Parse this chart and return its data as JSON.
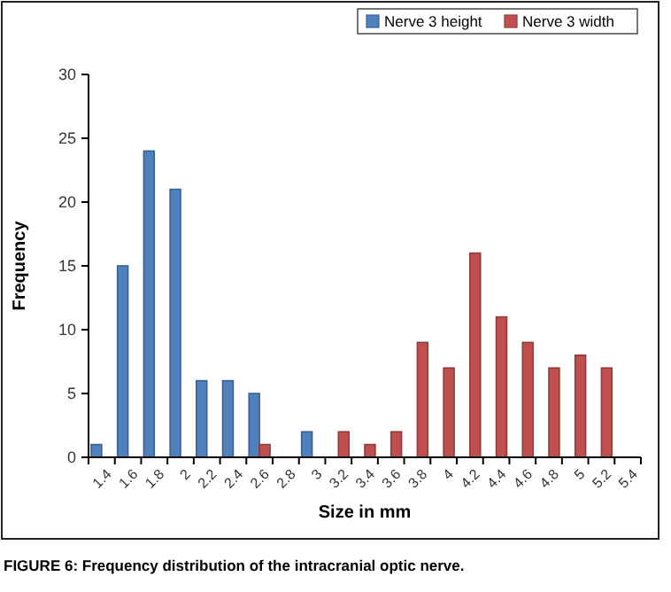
{
  "chart_data": {
    "type": "bar",
    "xlabel": "Size in mm",
    "ylabel": "Frequency",
    "categories": [
      "1.4",
      "1.6",
      "1.8",
      "2",
      "2.2",
      "2.4",
      "2.6",
      "2.8",
      "3",
      "3.2",
      "3.4",
      "3.6",
      "3.8",
      "4",
      "4.2",
      "4.4",
      "4.6",
      "4.8",
      "5",
      "5.2",
      "5.4"
    ],
    "series": [
      {
        "name": "Nerve 3 height",
        "color": "#4f81bd",
        "values": [
          1,
          15,
          24,
          21,
          6,
          6,
          5,
          null,
          2,
          null,
          null,
          null,
          null,
          null,
          null,
          null,
          null,
          null,
          null,
          null,
          null
        ]
      },
      {
        "name": "Nerve 3 width",
        "color": "#c0504d",
        "values": [
          null,
          null,
          null,
          null,
          null,
          null,
          1,
          null,
          null,
          2,
          1,
          2,
          9,
          7,
          16,
          11,
          9,
          7,
          8,
          7,
          null
        ]
      }
    ],
    "ylim": [
      0,
      30
    ],
    "yticks": [
      0,
      5,
      10,
      15,
      20,
      25,
      30
    ],
    "grid": false,
    "legend": "top right",
    "annotations": [
      "FIGURE 6: Frequency distribution of the intracranial optic nerve."
    ]
  }
}
